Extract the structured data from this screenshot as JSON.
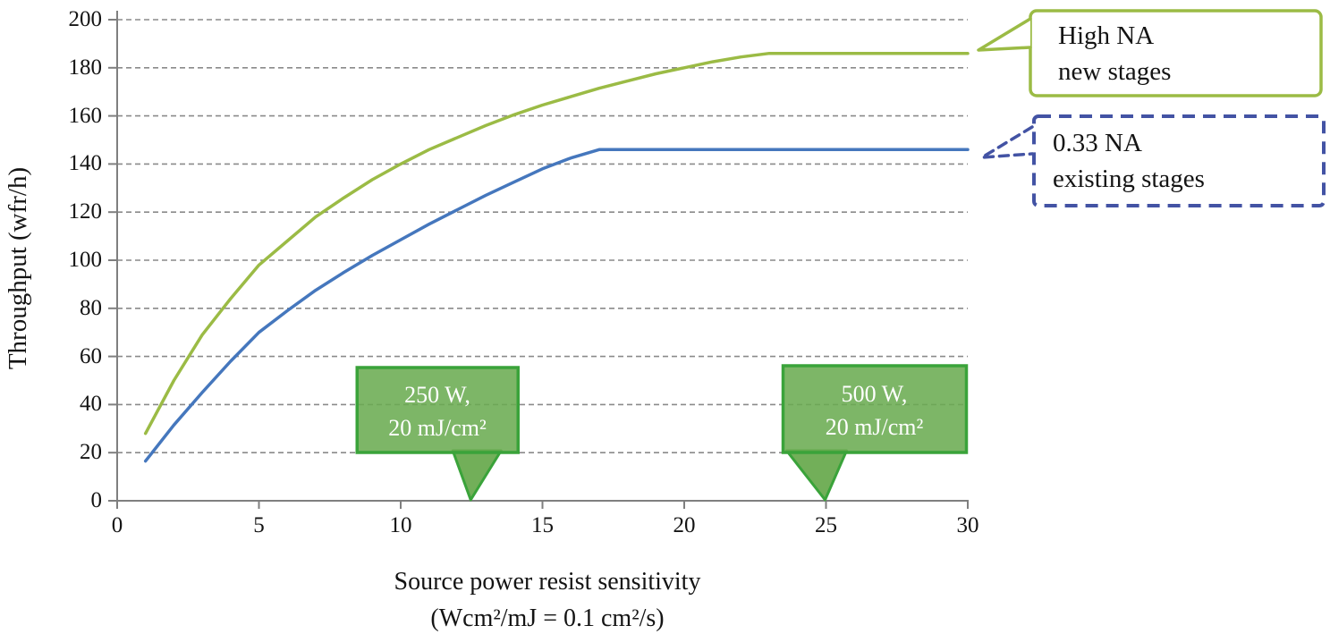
{
  "chart_data": {
    "type": "line",
    "title": "",
    "xlabel_line1": "Source power resist sensitivity",
    "xlabel_line2": "(Wcm²/mJ = 0.1 cm²/s)",
    "ylabel": "Throughput (wfr/h)",
    "xlim": [
      0,
      30
    ],
    "ylim": [
      0,
      200
    ],
    "x_ticks": [
      0,
      5,
      10,
      15,
      20,
      25,
      30
    ],
    "y_ticks": [
      0,
      20,
      40,
      60,
      80,
      100,
      120,
      140,
      160,
      180,
      200
    ],
    "grid": "horizontal-dashed",
    "legend_position": "outside-right-callouts",
    "colors": {
      "high_na_line": "#9bbb45",
      "existing_line": "#4577bd",
      "legend_dashed_border": "#4353a4",
      "annotation_fill": "#6aab50",
      "annotation_border": "#3aa33a",
      "gridline": "#8a8a8a",
      "axis": "#7f7f7f"
    },
    "series": [
      {
        "name": "0.33 NA existing stages",
        "style": "solid",
        "plateau": 146,
        "points": [
          [
            1,
            16.5
          ],
          [
            2,
            31.5
          ],
          [
            3,
            45
          ],
          [
            4,
            58
          ],
          [
            5,
            70
          ],
          [
            6,
            79
          ],
          [
            7,
            87.5
          ],
          [
            8,
            95
          ],
          [
            9,
            102
          ],
          [
            10,
            108.5
          ],
          [
            11,
            115
          ],
          [
            12,
            121
          ],
          [
            13,
            127
          ],
          [
            14,
            132.5
          ],
          [
            15,
            138
          ],
          [
            16,
            142.5
          ],
          [
            17,
            146
          ],
          [
            30,
            146
          ]
        ]
      },
      {
        "name": "High NA new stages",
        "style": "solid",
        "plateau": 186,
        "points": [
          [
            1,
            28
          ],
          [
            2,
            50
          ],
          [
            3,
            69
          ],
          [
            4,
            84
          ],
          [
            5,
            98
          ],
          [
            6,
            108
          ],
          [
            7,
            118
          ],
          [
            8,
            126
          ],
          [
            9,
            133.5
          ],
          [
            10,
            140
          ],
          [
            11,
            146
          ],
          [
            12,
            151
          ],
          [
            13,
            156
          ],
          [
            14,
            160.5
          ],
          [
            15,
            164.5
          ],
          [
            16,
            168
          ],
          [
            17,
            171.5
          ],
          [
            18,
            174.5
          ],
          [
            19,
            177.5
          ],
          [
            20,
            180
          ],
          [
            21,
            182.5
          ],
          [
            22,
            184.5
          ],
          [
            23,
            186
          ],
          [
            30,
            186
          ]
        ]
      }
    ],
    "annotations": [
      {
        "line1": "250 W,",
        "line2": "20 mJ/cm²",
        "points_to_x": 12.5
      },
      {
        "line1": "500 W,",
        "line2": "20 mJ/cm²",
        "points_to_x": 25
      }
    ],
    "legend_callouts": [
      {
        "line1": "High NA",
        "line2": "new stages",
        "border_style": "solid"
      },
      {
        "line1": "0.33 NA",
        "line2": "existing stages",
        "border_style": "dashed"
      }
    ]
  }
}
